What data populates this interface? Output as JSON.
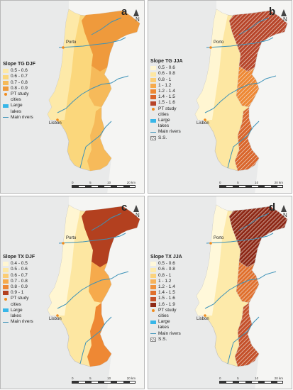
{
  "colors": {
    "river": "#3d92b8",
    "lake": "#38b6e8",
    "city": "#f08c1e",
    "sea": "#e9eaea"
  },
  "common": {
    "city_porto": "Porto",
    "city_lisbon": "Lisbon",
    "north": "N",
    "scale_labels": [
      "0",
      "5",
      "10",
      "20 km"
    ],
    "pt_cities": "PT study",
    "pt_cities2": "cities",
    "lakes": "Large",
    "lakes2": "lakes",
    "rivers": "Main rivers",
    "ss": "S.S."
  },
  "panels": [
    {
      "letter": "a",
      "legend_title": "Slope TG DJF",
      "classes": [
        {
          "label": "0.5 - 0.6",
          "color": "#fde9a8"
        },
        {
          "label": "0.6 - 0.7",
          "color": "#fbd77c"
        },
        {
          "label": "0.7 - 0.8",
          "color": "#f6ba5a"
        },
        {
          "label": "0.8 - 0.9",
          "color": "#ef9a3c"
        }
      ],
      "has_ss": false
    },
    {
      "letter": "b",
      "legend_title": "Slope TG JJA",
      "classes": [
        {
          "label": "0.5 - 0.6",
          "color": "#fff6d2"
        },
        {
          "label": "0.6 - 0.8",
          "color": "#fde7a2"
        },
        {
          "label": "0.8 - 1",
          "color": "#fbcd74"
        },
        {
          "label": "1 - 1.2",
          "color": "#f6aa4c"
        },
        {
          "label": "1.2 - 1.4",
          "color": "#ee8834"
        },
        {
          "label": "1.4 - 1.5",
          "color": "#d9652b"
        },
        {
          "label": "1.5 - 1.6",
          "color": "#b7452a"
        }
      ],
      "has_ss": true
    },
    {
      "letter": "c",
      "legend_title": "Slope TX DJF",
      "classes": [
        {
          "label": "0.4 - 0.5",
          "color": "#fff6d2"
        },
        {
          "label": "0.5 - 0.6",
          "color": "#fde7a2"
        },
        {
          "label": "0.6 - 0.7",
          "color": "#fbcd74"
        },
        {
          "label": "0.7 - 0.8",
          "color": "#f6aa4c"
        },
        {
          "label": "0.8 - 0.9",
          "color": "#ee8834"
        },
        {
          "label": "0.9 - 1",
          "color": "#b3401f"
        }
      ],
      "has_ss": false
    },
    {
      "letter": "d",
      "legend_title": "Slope TX JJA",
      "classes": [
        {
          "label": "0.5 - 0.6",
          "color": "#fff8da"
        },
        {
          "label": "0.6 - 0.8",
          "color": "#fdeaaa"
        },
        {
          "label": "0.8 - 1",
          "color": "#fbd27c"
        },
        {
          "label": "1 - 1.2",
          "color": "#f7b25a"
        },
        {
          "label": "1.2 - 1.4",
          "color": "#ef923e"
        },
        {
          "label": "1.4 - 1.5",
          "color": "#e0702e"
        },
        {
          "label": "1.5 - 1.6",
          "color": "#c4502a"
        },
        {
          "label": "1.6 - 1.9",
          "color": "#8e2a18"
        }
      ],
      "has_ss": true
    }
  ]
}
